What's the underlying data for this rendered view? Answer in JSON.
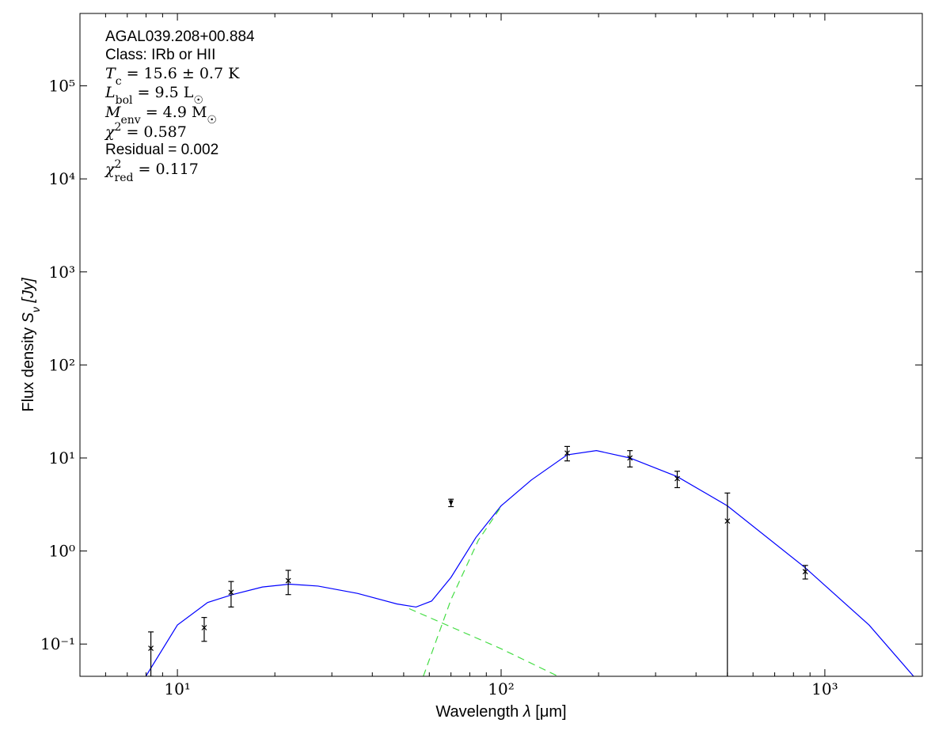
{
  "chart_data": {
    "type": "line",
    "xlabel": [
      {
        "text": "Wavelength "
      },
      {
        "text": "λ",
        "italic": true
      },
      {
        "text": " [μm]"
      }
    ],
    "ylabel": [
      {
        "text": "Flux density "
      },
      {
        "text": "S",
        "italic": true
      },
      {
        "text": "ν",
        "italic": true,
        "sub": true
      },
      {
        "text": " [Jy]",
        "italic": true
      }
    ],
    "xscale": "log",
    "yscale": "log",
    "xlim": [
      5,
      2000
    ],
    "ylim": [
      0.045,
      600000
    ],
    "xticks": [
      {
        "value": 10,
        "label": "10¹"
      },
      {
        "value": 100,
        "label": "10²"
      },
      {
        "value": 1000,
        "label": "10³"
      }
    ],
    "xminorticks": [
      6,
      7,
      8,
      9,
      20,
      30,
      40,
      50,
      60,
      70,
      80,
      90,
      200,
      300,
      400,
      500,
      600,
      700,
      800,
      900
    ],
    "yticks": [
      {
        "value": 0.1,
        "label": "10⁻¹"
      },
      {
        "value": 1,
        "label": "10⁰"
      },
      {
        "value": 10,
        "label": "10¹"
      },
      {
        "value": 100,
        "label": "10²"
      },
      {
        "value": 1000,
        "label": "10³"
      },
      {
        "value": 10000,
        "label": "10⁴"
      },
      {
        "value": 100000,
        "label": "10⁵"
      }
    ],
    "annotations": [
      [
        {
          "text": "AGAL039.208+00.884"
        }
      ],
      [
        {
          "text": "Class: IRb or HII"
        }
      ],
      [
        {
          "text": "T",
          "italic": true,
          "serif": true
        },
        {
          "text": "c",
          "sub": true,
          "serif": true
        },
        {
          "text": " = 15.6 ± 0.7 K",
          "serif": true
        }
      ],
      [
        {
          "text": "L",
          "italic": true,
          "serif": true
        },
        {
          "text": "bol",
          "sub": true,
          "serif": true
        },
        {
          "text": " = 9.5 L",
          "serif": true
        },
        {
          "text": "☉",
          "sub": true,
          "serif": true
        }
      ],
      [
        {
          "text": "M",
          "italic": true,
          "serif": true
        },
        {
          "text": "env",
          "sub": true,
          "serif": true
        },
        {
          "text": " = 4.9 M",
          "serif": true
        },
        {
          "text": "☉",
          "sub": true,
          "serif": true
        }
      ],
      [
        {
          "text": "χ",
          "italic": true,
          "serif": true
        },
        {
          "text": "2",
          "sup": true,
          "serif": true
        },
        {
          "text": " = 0.587",
          "serif": true
        }
      ],
      [
        {
          "text": "Residual = 0.002"
        }
      ],
      [
        {
          "text": "χ",
          "italic": true,
          "serif": true
        },
        {
          "text": "2",
          "sup": true,
          "serif": true
        },
        {
          "text": "red",
          "sub": true,
          "serif": true
        },
        {
          "text": " = 0.117",
          "serif": true
        }
      ]
    ],
    "series": [
      {
        "style": "solid",
        "color": "#0000ff",
        "x": [
          7.99,
          10,
          12.4,
          14.8,
          18.3,
          22.2,
          27.2,
          36,
          47.6,
          54.6,
          61,
          70,
          83.6,
          100,
          124,
          160,
          197,
          250,
          350,
          500,
          870,
          1370,
          1880
        ],
        "values": [
          0.045,
          0.16,
          0.28,
          0.34,
          0.41,
          0.44,
          0.42,
          0.35,
          0.27,
          0.25,
          0.29,
          0.52,
          1.4,
          3.06,
          5.8,
          10.8,
          12,
          10,
          6.3,
          3.06,
          0.66,
          0.16,
          0.045
        ]
      },
      {
        "style": "dashed",
        "color": "#44dd44",
        "x": [
          52,
          100,
          150
        ],
        "values": [
          0.24,
          0.089,
          0.045
        ]
      },
      {
        "style": "dashed",
        "color": "#44dd44",
        "x": [
          57.5,
          70,
          85,
          100
        ],
        "values": [
          0.045,
          0.3,
          1.3,
          3.0
        ]
      },
      {
        "style": "errorbar",
        "color": "#000000",
        "x": [
          8.28,
          12.1,
          14.65,
          22,
          70,
          160,
          250,
          350,
          500,
          870
        ],
        "values": [
          0.09,
          0.15,
          0.36,
          0.48,
          3.3,
          11.3,
          10,
          6,
          2.1,
          0.6
        ],
        "errors": [
          0.045,
          0.043,
          0.11,
          0.14,
          0.3,
          2,
          2,
          1.2,
          2.1,
          0.1
        ],
        "upper_limits": [
          false,
          false,
          false,
          false,
          true,
          false,
          false,
          false,
          false,
          false
        ]
      }
    ]
  }
}
